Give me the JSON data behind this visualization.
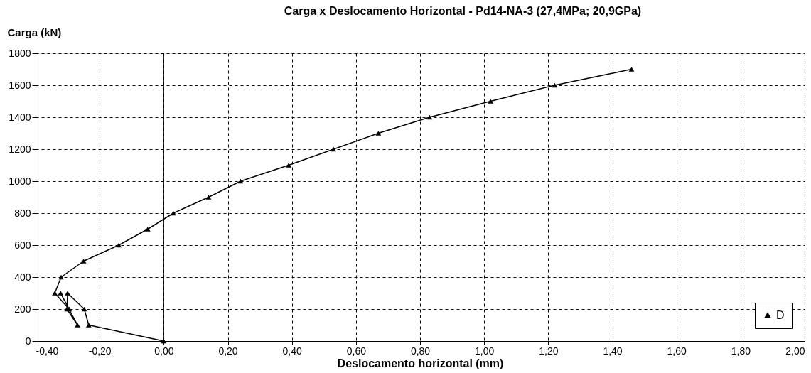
{
  "chart_data": {
    "type": "line",
    "title": "Carga x Deslocamento Horizontal - Pd14-NA-3  (27,4MPa; 20,9GPa)",
    "xlabel": "Deslocamento horizontal (mm)",
    "ylabel": "Carga  (kN)",
    "x": [
      0.0,
      -0.234,
      -0.248,
      -0.3,
      -0.302,
      -0.269,
      -0.322,
      -0.295,
      -0.34,
      -0.32,
      -0.25,
      -0.14,
      -0.05,
      0.03,
      0.14,
      0.24,
      0.39,
      0.53,
      0.67,
      0.83,
      1.02,
      1.22,
      1.46
    ],
    "series": [
      {
        "name": "D",
        "color": "#000000",
        "values": [
          0,
          100,
          200,
          300,
          200,
          100,
          300,
          200,
          300,
          400,
          500,
          600,
          700,
          800,
          900,
          1000,
          1100,
          1200,
          1300,
          1400,
          1500,
          1600,
          1700
        ]
      }
    ],
    "xlim": [
      -0.4,
      2.0
    ],
    "ylim": [
      0,
      1800
    ],
    "xticks": [
      {
        "value": -0.4,
        "label": "-0,40"
      },
      {
        "value": -0.2,
        "label": "-0,20"
      },
      {
        "value": 0,
        "label": "0,00"
      },
      {
        "value": 0.2,
        "label": "0,20"
      },
      {
        "value": 0.4,
        "label": "0,40"
      },
      {
        "value": 0.6,
        "label": "0,60"
      },
      {
        "value": 0.8,
        "label": "0,80"
      },
      {
        "value": 1.0,
        "label": "1,00"
      },
      {
        "value": 1.2,
        "label": "1,20"
      },
      {
        "value": 1.4,
        "label": "1,40"
      },
      {
        "value": 1.6,
        "label": "1,60"
      },
      {
        "value": 1.8,
        "label": "1,80"
      },
      {
        "value": 2.0,
        "label": "2,00"
      }
    ],
    "yticks": [
      0,
      200,
      400,
      600,
      800,
      1000,
      1200,
      1400,
      1600,
      1800
    ],
    "ref_lines": [
      {
        "axis": "x",
        "value": 0,
        "color": "#000000",
        "line_style": "solid"
      }
    ],
    "grid": true,
    "legend": "bottom right",
    "marker": "triangle",
    "line_style": "solid"
  }
}
